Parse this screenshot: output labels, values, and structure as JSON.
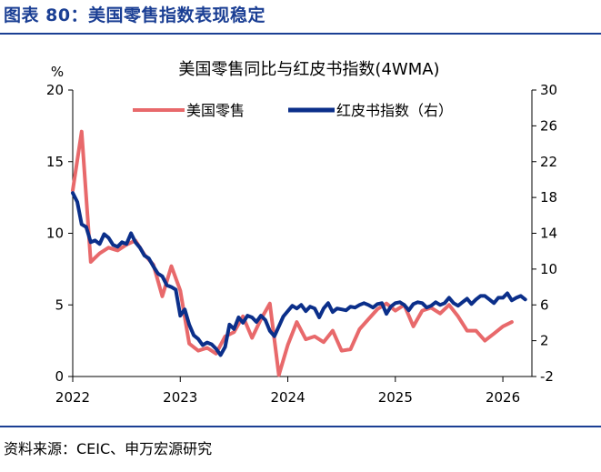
{
  "figure": {
    "title": "图表 80：美国零售指数表现稳定",
    "source": "资料来源：CEIC、申万宏源研究"
  },
  "colors": {
    "accent": "#1b3f94",
    "retail": "#e8696b",
    "redbook": "#0b2f8a"
  },
  "chart_data": {
    "type": "line",
    "title": "美国零售同比与红皮书指数(4WMA)",
    "y_unit_label": "%",
    "xlim": [
      2022.0,
      2026.27
    ],
    "x_ticks": [
      2022,
      2023,
      2024,
      2025,
      2026
    ],
    "x_tick_labels": [
      "2022",
      "2023",
      "2024",
      "2025",
      "2026"
    ],
    "ylim_left": [
      0,
      20
    ],
    "y_ticks_left": [
      0,
      5,
      10,
      15,
      20
    ],
    "ylim_right": [
      -2,
      30
    ],
    "y_ticks_right": [
      -2,
      2,
      6,
      10,
      14,
      18,
      22,
      26,
      30
    ],
    "legend": "top-center",
    "grid": false,
    "series": [
      {
        "name": "美国零售",
        "axis": "left",
        "x": [
          2022.0,
          2022.083,
          2022.167,
          2022.25,
          2022.333,
          2022.417,
          2022.5,
          2022.583,
          2022.667,
          2022.75,
          2022.833,
          2022.917,
          2023.0,
          2023.083,
          2023.167,
          2023.25,
          2023.333,
          2023.417,
          2023.5,
          2023.583,
          2023.667,
          2023.75,
          2023.833,
          2023.917,
          2024.0,
          2024.083,
          2024.167,
          2024.25,
          2024.333,
          2024.417,
          2024.5,
          2024.583,
          2024.667,
          2024.75,
          2024.833,
          2024.917,
          2025.0,
          2025.083,
          2025.167,
          2025.25,
          2025.333,
          2025.417,
          2025.5,
          2025.583,
          2025.667,
          2025.75,
          2025.833,
          2025.917,
          2026.0,
          2026.083
        ],
        "y": [
          13.0,
          17.1,
          8.0,
          8.6,
          9.0,
          8.8,
          9.2,
          9.5,
          8.5,
          7.8,
          5.6,
          7.7,
          6.0,
          2.3,
          1.8,
          2.0,
          1.6,
          2.8,
          3.1,
          4.2,
          2.7,
          4.0,
          5.1,
          0.1,
          2.2,
          3.8,
          2.6,
          2.8,
          2.4,
          3.2,
          1.8,
          1.9,
          3.3,
          4.0,
          4.7,
          5.1,
          4.6,
          5.0,
          3.5,
          4.6,
          4.8,
          4.4,
          5.0,
          4.2,
          3.2,
          3.2,
          2.5,
          3.0,
          3.5,
          3.8
        ]
      },
      {
        "name": "红皮书指数（右）",
        "axis": "right",
        "x": [
          2022.0,
          2022.042,
          2022.083,
          2022.125,
          2022.167,
          2022.208,
          2022.25,
          2022.292,
          2022.333,
          2022.375,
          2022.417,
          2022.458,
          2022.5,
          2022.542,
          2022.583,
          2022.625,
          2022.667,
          2022.708,
          2022.75,
          2022.792,
          2022.833,
          2022.875,
          2022.917,
          2022.958,
          2023.0,
          2023.042,
          2023.083,
          2023.125,
          2023.167,
          2023.208,
          2023.25,
          2023.292,
          2023.333,
          2023.375,
          2023.417,
          2023.458,
          2023.5,
          2023.542,
          2023.583,
          2023.625,
          2023.667,
          2023.708,
          2023.75,
          2023.792,
          2023.833,
          2023.875,
          2023.917,
          2023.958,
          2024.0,
          2024.042,
          2024.083,
          2024.125,
          2024.167,
          2024.208,
          2024.25,
          2024.292,
          2024.333,
          2024.375,
          2024.417,
          2024.458,
          2024.5,
          2024.542,
          2024.583,
          2024.625,
          2024.667,
          2024.708,
          2024.75,
          2024.792,
          2024.833,
          2024.875,
          2024.917,
          2024.958,
          2025.0,
          2025.042,
          2025.083,
          2025.125,
          2025.167,
          2025.208,
          2025.25,
          2025.292,
          2025.333,
          2025.375,
          2025.417,
          2025.458,
          2025.5,
          2025.542,
          2025.583,
          2025.625,
          2025.667,
          2025.708,
          2025.75,
          2025.792,
          2025.833,
          2025.875,
          2025.917,
          2025.958,
          2026.0,
          2026.042,
          2026.083,
          2026.125,
          2026.167,
          2026.208
        ],
        "y": [
          18.5,
          17.5,
          15.0,
          14.7,
          13.0,
          13.2,
          12.8,
          13.9,
          13.5,
          12.7,
          12.5,
          13.0,
          12.8,
          14.0,
          13.0,
          12.4,
          11.5,
          11.2,
          10.3,
          9.5,
          9.2,
          8.2,
          8.0,
          7.7,
          4.8,
          5.5,
          3.8,
          2.6,
          2.2,
          1.5,
          1.8,
          1.6,
          1.1,
          0.4,
          1.3,
          3.8,
          3.3,
          4.6,
          4.0,
          4.8,
          4.6,
          4.1,
          4.8,
          4.3,
          3.1,
          2.5,
          3.6,
          4.7,
          5.3,
          5.9,
          5.6,
          6.0,
          5.3,
          5.8,
          5.6,
          4.6,
          5.6,
          6.2,
          5.2,
          5.6,
          5.5,
          5.4,
          5.8,
          5.7,
          6.0,
          6.2,
          6.0,
          5.7,
          6.1,
          6.2,
          5.0,
          5.8,
          6.2,
          6.3,
          6.0,
          5.4,
          6.1,
          6.3,
          6.2,
          5.7,
          5.9,
          6.3,
          6.0,
          6.2,
          6.8,
          6.2,
          5.9,
          6.3,
          6.7,
          6.1,
          6.6,
          7.0,
          7.0,
          6.6,
          6.2,
          6.8,
          6.8,
          7.3,
          6.5,
          6.8,
          7.0,
          6.6
        ]
      }
    ]
  }
}
